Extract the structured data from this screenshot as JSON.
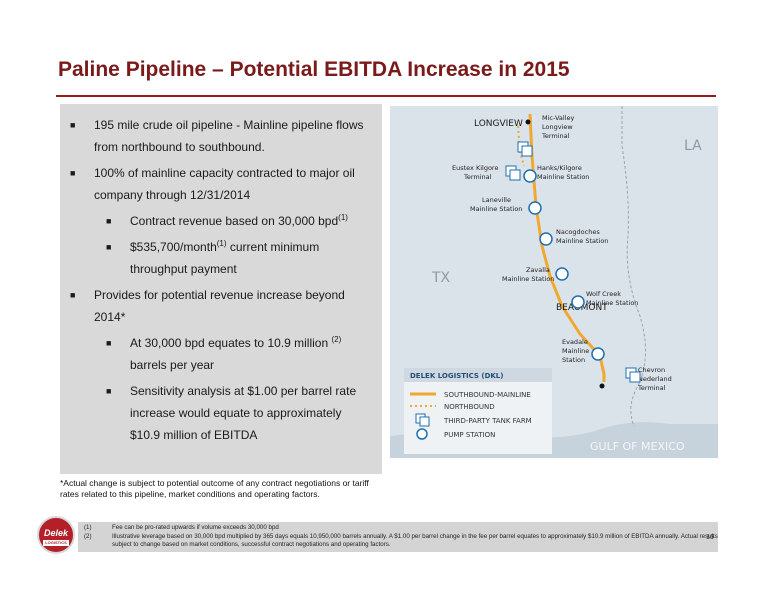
{
  "title": "Paline Pipeline – Potential EBITDA Increase in 2015",
  "bullets": [
    {
      "text": "195 mile crude oil pipeline - Mainline pipeline flows from northbound to southbound."
    },
    {
      "text": "100% of mainline capacity contracted to major oil company through 12/31/2014"
    },
    {
      "text": "Provides for potential revenue increase beyond 2014*"
    }
  ],
  "sub_bullets": {
    "contract_pre": "Contract revenue based on 30,000 bpd",
    "contract_sup": "(1)",
    "monthly_pre": "$535,700/month",
    "monthly_sup": "(1)",
    "monthly_post": " current minimum throughput payment",
    "equates_pre": "At 30,000 bpd equates to 10.9 million ",
    "equates_sup": "(2)",
    "equates_post": " barrels per year",
    "sensitivity": "Sensitivity analysis at $1.00 per barrel rate increase would equate to approximately $10.9 million of EBITDA"
  },
  "note": "*Actual change is subject to potential outcome of any contract negotiations or tariff rates related to this pipeline, market conditions and operating factors.",
  "map": {
    "state_la": "LA",
    "state_tx": "TX",
    "gulf": "GULF OF MEXICO",
    "longview": "LONGVIEW",
    "beaumont": "BEAUMONT",
    "mic_valley": [
      "Mic-Valley",
      "Longview",
      "Terminal"
    ],
    "eustex": [
      "Eustex Kilgore",
      "Terminal"
    ],
    "hanks": [
      "Hanks/Kilgore",
      "Mainline Station"
    ],
    "laneville": [
      "Laneville",
      "Mainline Station"
    ],
    "nacogdoches": [
      "Nacogdoches",
      "Mainline Station"
    ],
    "zavalla": [
      "Zavalla",
      "Mainline Station"
    ],
    "wolf_creek": [
      "Wolf Creek",
      "Mainline Station"
    ],
    "evadale": [
      "Evadale",
      "Mainline",
      "Station"
    ],
    "chevron": [
      "Chevron",
      "Nederland",
      "Terminal"
    ],
    "legend_title": "DELEK LOGISTICS (DKL)",
    "legend_items": [
      "SOUTHBOUND-MAINLINE",
      "NORTHBOUND",
      "THIRD-PARTY TANK FARM",
      "PUMP STATION"
    ]
  },
  "footnotes": [
    {
      "num": "(1)",
      "text": "Fee can be pro-rated upwards if volume exceeds 30,000 bpd"
    },
    {
      "num": "(2)",
      "text": "Illustrative leverage based on 30,000 bpd multiplied by 365 days equals 10,950,000 barrels annually. A $1.00 per barrel change in the fee per barrel equates to approximately $10.9 million of EBITDA annually. Actual results subject to change based on market conditions, successful contract negotiations and operating factors."
    }
  ],
  "page_number": "16",
  "logo": {
    "name": "Delek",
    "sub": "LOGISTICS"
  },
  "colors": {
    "title": "#7a1a1a",
    "rule": "#9b1c1c",
    "pipeline": "#f0a830",
    "station": "#1f6fb0",
    "map_bg": "#dbe3ea",
    "logo": "#b3202a"
  }
}
